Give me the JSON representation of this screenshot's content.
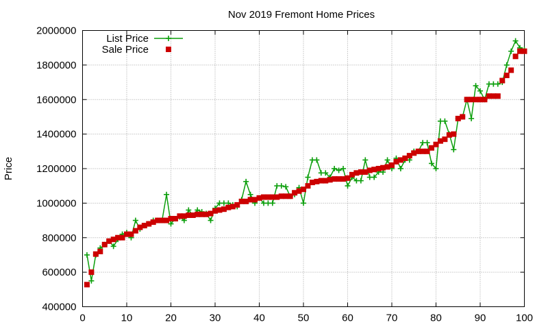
{
  "chart_data": {
    "type": "line",
    "title": "Nov 2019 Fremont Home Prices",
    "xlabel": "",
    "ylabel": "Price",
    "xlim": [
      0,
      100
    ],
    "ylim": [
      400000,
      2000000
    ],
    "xticks": [
      0,
      10,
      20,
      30,
      40,
      50,
      60,
      70,
      80,
      90,
      100
    ],
    "yticks": [
      400000,
      600000,
      800000,
      1000000,
      1200000,
      1400000,
      1600000,
      1800000,
      2000000
    ],
    "grid": true,
    "legend_position": "top-left",
    "x": [
      1,
      2,
      3,
      4,
      5,
      6,
      7,
      8,
      9,
      10,
      11,
      12,
      13,
      14,
      15,
      16,
      17,
      18,
      19,
      20,
      21,
      22,
      23,
      24,
      25,
      26,
      27,
      28,
      29,
      30,
      31,
      32,
      33,
      34,
      35,
      36,
      37,
      38,
      39,
      40,
      41,
      42,
      43,
      44,
      45,
      46,
      47,
      48,
      49,
      50,
      51,
      52,
      53,
      54,
      55,
      56,
      57,
      58,
      59,
      60,
      61,
      62,
      63,
      64,
      65,
      66,
      67,
      68,
      69,
      70,
      71,
      72,
      73,
      74,
      75,
      76,
      77,
      78,
      79,
      80,
      81,
      82,
      83,
      84,
      85,
      86,
      87,
      88,
      89,
      90,
      91,
      92,
      93,
      94,
      95,
      96,
      97,
      98,
      99,
      100
    ],
    "series": [
      {
        "name": "List Price",
        "style": "line-plus",
        "color": "#0a9e0a",
        "values": [
          700000,
          550000,
          700000,
          740000,
          760000,
          780000,
          750000,
          790000,
          820000,
          830000,
          800000,
          900000,
          850000,
          870000,
          880000,
          900000,
          900000,
          900000,
          1050000,
          880000,
          910000,
          920000,
          900000,
          960000,
          930000,
          960000,
          950000,
          940000,
          900000,
          970000,
          1000000,
          1000000,
          1000000,
          990000,
          980000,
          1020000,
          1125000,
          1050000,
          1000000,
          1030000,
          1000000,
          1000000,
          1000000,
          1100000,
          1100000,
          1095000,
          1040000,
          1050000,
          1090000,
          1000000,
          1150000,
          1250000,
          1250000,
          1175000,
          1175000,
          1150000,
          1200000,
          1190000,
          1200000,
          1100000,
          1150000,
          1130000,
          1130000,
          1250000,
          1150000,
          1150000,
          1180000,
          1180000,
          1250000,
          1200000,
          1260000,
          1200000,
          1250000,
          1250000,
          1300000,
          1300000,
          1350000,
          1350000,
          1230000,
          1200000,
          1475000,
          1475000,
          1400000,
          1310000,
          1490000,
          1500000,
          1600000,
          1490000,
          1680000,
          1650000,
          1600000,
          1690000,
          1690000,
          1690000,
          1700000,
          1800000,
          1880000,
          1940000,
          1900000,
          1890000
        ]
      },
      {
        "name": "Sale Price",
        "style": "square-points",
        "color": "#cc0000",
        "values": [
          528000,
          600000,
          705000,
          720000,
          760000,
          780000,
          790000,
          800000,
          800000,
          820000,
          820000,
          840000,
          860000,
          870000,
          880000,
          890000,
          900000,
          900000,
          900000,
          910000,
          910000,
          925000,
          925000,
          930000,
          930000,
          935000,
          935000,
          935000,
          940000,
          955000,
          960000,
          965000,
          975000,
          980000,
          990000,
          1010000,
          1010000,
          1020000,
          1020000,
          1030000,
          1035000,
          1035000,
          1035000,
          1035000,
          1040000,
          1040000,
          1040000,
          1060000,
          1070000,
          1080000,
          1100000,
          1120000,
          1125000,
          1130000,
          1130000,
          1135000,
          1140000,
          1140000,
          1140000,
          1145000,
          1165000,
          1175000,
          1180000,
          1180000,
          1190000,
          1195000,
          1200000,
          1205000,
          1210000,
          1220000,
          1240000,
          1250000,
          1260000,
          1275000,
          1290000,
          1300000,
          1300000,
          1300000,
          1320000,
          1340000,
          1360000,
          1370000,
          1395000,
          1400000,
          1490000,
          1500000,
          1600000,
          1600000,
          1600000,
          1600000,
          1600000,
          1620000,
          1620000,
          1620000,
          1710000,
          1740000,
          1770000,
          1850000,
          1880000,
          1880000
        ]
      }
    ]
  }
}
